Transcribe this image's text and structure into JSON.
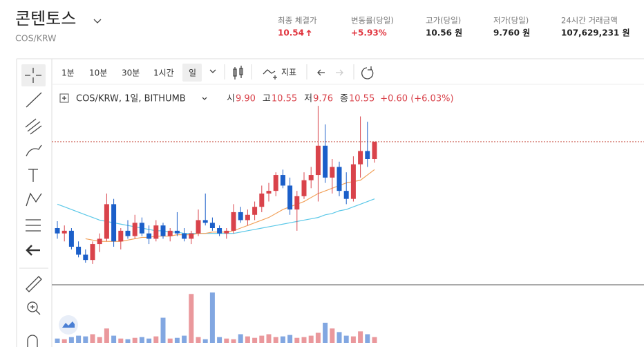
{
  "header": {
    "title": "콘텐토스",
    "pair": "COS/KRW",
    "stats": [
      {
        "label": "최종 체결가",
        "value": "10.54",
        "tone": "up"
      },
      {
        "label": "변동률(당일)",
        "value": "+5.93%",
        "tone": "up"
      },
      {
        "label": "고가(당일)",
        "value": "10.56 원",
        "tone": "plain"
      },
      {
        "label": "저가(당일)",
        "value": "9.760 원",
        "tone": "plain"
      },
      {
        "label": "24시간 거래금액",
        "value": "107,629,231 원",
        "tone": "plain"
      }
    ]
  },
  "toolbar": {
    "intervals": [
      "1분",
      "10분",
      "30분",
      "1시간",
      "일"
    ],
    "active": 4,
    "indicator": "지표"
  },
  "legend": {
    "symbol": "COS/KRW, 1일, BITHUMB",
    "ohlc": [
      {
        "label": "시",
        "value": "9.90"
      },
      {
        "label": "고",
        "value": "10.55"
      },
      {
        "label": "저",
        "value": "9.76"
      },
      {
        "label": "종",
        "value": "10.55"
      }
    ],
    "change": "+0.60 (+6.03%)"
  },
  "chart_data": {
    "type": "candlestick",
    "up_color": "#d9434b",
    "down_color": "#1b5fc9",
    "ylim": [
      5.22,
      12.63
    ],
    "volume_ylim": [
      0,
      75
    ],
    "open": [
      7.3,
      7.1,
      7.2,
      6.6,
      6.3,
      6.1,
      6.7,
      6.9,
      8.2,
      6.8,
      7.2,
      7.0,
      7.5,
      7.1,
      6.9,
      7.4,
      7.0,
      7.2,
      7.1,
      6.9,
      7.1,
      7.6,
      7.5,
      7.3,
      7.1,
      7.2,
      7.9,
      7.6,
      7.8,
      8.1,
      8.6,
      8.7,
      9.3,
      8.9,
      8.0,
      8.5,
      9.1,
      9.3,
      10.4,
      9.2,
      9.6,
      8.7,
      8.4,
      9.7,
      10.2,
      9.9
    ],
    "high": [
      7.56,
      7.4,
      7.3,
      6.8,
      6.5,
      6.8,
      7.1,
      8.6,
      8.4,
      7.3,
      7.6,
      7.8,
      7.7,
      7.4,
      7.6,
      7.5,
      7.3,
      7.9,
      7.3,
      7.2,
      8.0,
      8.6,
      7.7,
      7.4,
      7.3,
      8.2,
      8.1,
      8.0,
      8.3,
      8.9,
      9.0,
      9.4,
      9.5,
      9.2,
      8.7,
      9.4,
      9.6,
      11.9,
      11.2,
      9.9,
      9.8,
      9.4,
      10.0,
      11.5,
      11.3,
      10.55
    ],
    "low": [
      6.9,
      6.8,
      6.5,
      6.2,
      6.0,
      5.95,
      6.4,
      6.8,
      6.6,
      6.5,
      6.9,
      6.9,
      7.0,
      6.7,
      6.8,
      6.9,
      6.8,
      7.0,
      6.8,
      6.7,
      7.0,
      7.4,
      7.2,
      7.0,
      6.9,
      7.1,
      7.5,
      7.4,
      7.6,
      7.9,
      8.3,
      8.5,
      8.8,
      7.8,
      7.2,
      8.4,
      8.8,
      8.3,
      9.0,
      8.6,
      8.5,
      8.2,
      8.3,
      9.2,
      9.6,
      9.76
    ],
    "close": [
      7.1,
      7.2,
      6.6,
      6.3,
      6.1,
      6.7,
      6.9,
      8.2,
      6.8,
      7.2,
      7.0,
      7.5,
      7.1,
      6.9,
      7.4,
      7.0,
      7.2,
      7.1,
      6.9,
      7.1,
      7.6,
      7.5,
      7.3,
      7.1,
      7.2,
      7.9,
      7.6,
      7.8,
      8.1,
      8.6,
      8.7,
      9.3,
      8.9,
      8.0,
      8.5,
      9.1,
      9.3,
      10.4,
      9.2,
      9.6,
      8.7,
      8.4,
      9.7,
      10.2,
      9.9,
      10.55
    ],
    "volume": [
      6,
      5,
      8,
      10,
      9,
      12,
      8,
      20,
      10,
      6,
      5,
      7,
      8,
      6,
      9,
      35,
      6,
      7,
      10,
      68,
      8,
      5,
      70,
      8,
      6,
      5,
      12,
      9,
      7,
      10,
      12,
      8,
      9,
      11,
      7,
      8,
      10,
      14,
      28,
      20,
      15,
      10,
      9,
      16,
      12,
      8
    ],
    "ma_lines": [
      {
        "color": "#5bc8e8",
        "values": [
          8.2,
          8.1,
          8.0,
          7.9,
          7.8,
          7.7,
          7.6,
          7.55,
          7.5,
          7.45,
          7.4,
          7.35,
          7.3,
          7.25,
          7.2,
          7.2,
          7.15,
          7.15,
          7.1,
          7.1,
          7.1,
          7.1,
          7.1,
          7.1,
          7.1,
          7.1,
          7.15,
          7.2,
          7.25,
          7.3,
          7.35,
          7.4,
          7.45,
          7.5,
          7.55,
          7.6,
          7.65,
          7.7,
          7.8,
          7.85,
          7.95,
          8.0,
          8.1,
          8.2,
          8.3,
          8.4
        ]
      },
      {
        "color": "#f2a25c",
        "values": [
          null,
          null,
          null,
          null,
          6.9,
          6.85,
          6.8,
          6.8,
          6.8,
          6.8,
          6.85,
          6.9,
          6.95,
          6.95,
          7.0,
          7.0,
          7.0,
          7.05,
          7.05,
          7.05,
          7.1,
          7.1,
          7.15,
          7.15,
          7.15,
          7.2,
          7.3,
          7.4,
          7.5,
          7.6,
          7.7,
          7.85,
          8.0,
          8.1,
          8.2,
          8.3,
          8.45,
          8.6,
          8.7,
          8.8,
          8.9,
          9.0,
          9.05,
          9.1,
          9.3,
          9.5
        ]
      }
    ],
    "price_line": 10.55
  }
}
